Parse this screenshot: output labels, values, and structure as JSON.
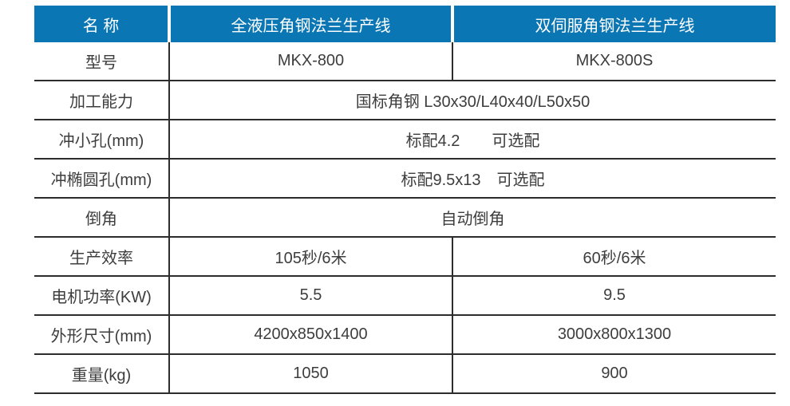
{
  "table": {
    "header": {
      "name_col": "名 称",
      "line1_col": "全液压角钢法兰生产线",
      "line2_col": "双伺服角钢法兰生产线"
    },
    "rows": [
      {
        "label": "型号",
        "col2": "MKX-800",
        "col3": "MKX-800S"
      },
      {
        "label": "加工能力",
        "value": "国标角钢 L30x30/L40x40/L50x50"
      },
      {
        "label": "冲小孔(mm)",
        "value": "标配4.2　　可选配"
      },
      {
        "label": "冲椭圆孔(mm)",
        "value": "标配9.5x13　可选配"
      },
      {
        "label": "倒角",
        "value": "自动倒角"
      },
      {
        "label": "生产效率",
        "col2": "105秒/6米",
        "col3": "60秒/6米"
      },
      {
        "label": "电机功率(KW)",
        "col2": "5.5",
        "col3": "9.5"
      },
      {
        "label": "外形尺寸(mm)",
        "col2": "4200x850x1400",
        "col3": "3000x800x1300"
      },
      {
        "label": "重量(kg)",
        "col2": "1050",
        "col3": "900"
      }
    ],
    "colors": {
      "header_bg": "#0b76b4",
      "header_text": "#ffffff",
      "body_text": "#3d3d3d",
      "border": "#2d2d2d",
      "background": "#ffffff"
    }
  }
}
